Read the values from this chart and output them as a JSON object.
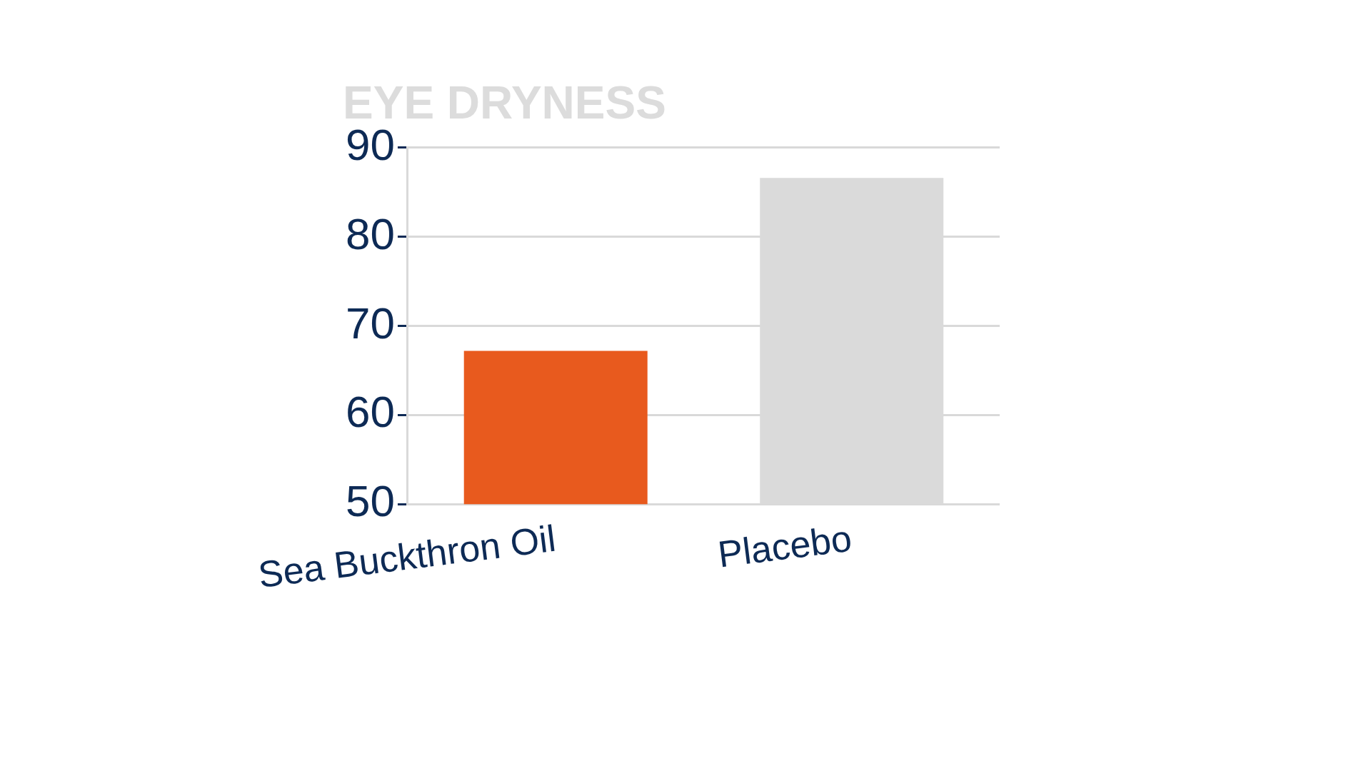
{
  "chart_data": {
    "type": "bar",
    "title": "EYE DRYNESS",
    "categories": [
      "Sea Buckthron Oil",
      "Placebo"
    ],
    "values": [
      67.2,
      86.6
    ],
    "colors": [
      "#e85a1e",
      "#dadada"
    ],
    "ylim": [
      50,
      90
    ],
    "yticks": [
      50,
      60,
      70,
      80,
      90
    ],
    "grid": "y"
  }
}
